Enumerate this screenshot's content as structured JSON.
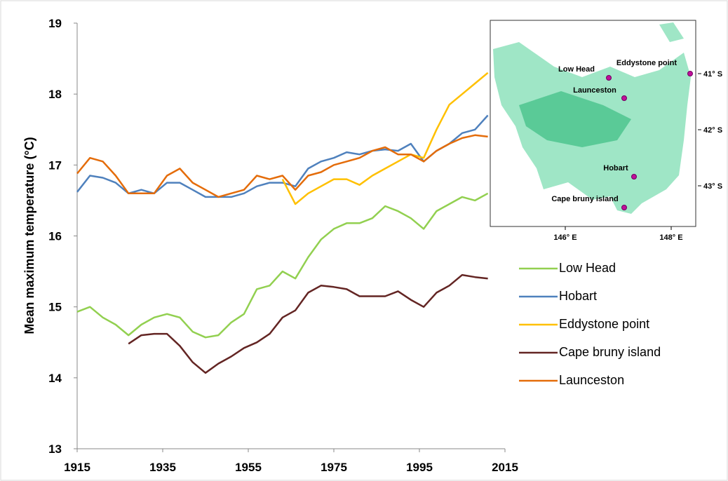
{
  "chart_data": {
    "type": "line",
    "ylabel": "Mean maximum  temperature (°C)",
    "xlim": [
      1915,
      2015
    ],
    "xticks": [
      1915,
      1935,
      1955,
      1975,
      1995,
      2015
    ],
    "ylim": [
      13,
      19
    ],
    "yticks": [
      13,
      14,
      15,
      16,
      17,
      18,
      19
    ],
    "grid": false,
    "legend": "right",
    "x": [
      1915,
      1918,
      1921,
      1924,
      1927,
      1930,
      1933,
      1936,
      1939,
      1942,
      1945,
      1948,
      1951,
      1954,
      1957,
      1960,
      1963,
      1966,
      1969,
      1972,
      1975,
      1978,
      1981,
      1984,
      1987,
      1990,
      1993,
      1996,
      1999,
      2002,
      2005,
      2008,
      2011
    ],
    "series": [
      {
        "name": "Low Head",
        "color": "#92d050",
        "values": [
          14.93,
          15.0,
          14.85,
          14.75,
          14.6,
          14.75,
          14.85,
          14.9,
          14.85,
          14.65,
          14.57,
          14.6,
          14.78,
          14.9,
          15.25,
          15.3,
          15.5,
          15.4,
          15.7,
          15.95,
          16.1,
          16.18,
          16.18,
          16.25,
          16.42,
          16.35,
          16.25,
          16.1,
          16.35,
          16.45,
          16.55,
          16.5,
          16.6
        ]
      },
      {
        "name": "Hobart",
        "color": "#4f81bd",
        "values": [
          16.62,
          16.85,
          16.82,
          16.75,
          16.6,
          16.65,
          16.6,
          16.75,
          16.75,
          16.65,
          16.55,
          16.55,
          16.55,
          16.6,
          16.7,
          16.75,
          16.75,
          16.7,
          16.95,
          17.05,
          17.1,
          17.18,
          17.15,
          17.2,
          17.22,
          17.2,
          17.3,
          17.05,
          17.2,
          17.3,
          17.45,
          17.5,
          17.7
        ]
      },
      {
        "name": "Eddystone point",
        "color": "#ffc000",
        "values": [
          null,
          null,
          null,
          null,
          null,
          null,
          null,
          null,
          null,
          null,
          null,
          null,
          null,
          null,
          null,
          null,
          16.8,
          16.45,
          16.6,
          16.7,
          16.8,
          16.8,
          16.72,
          16.85,
          16.95,
          17.05,
          17.15,
          17.1,
          17.5,
          17.85,
          18.0,
          18.15,
          18.3
        ]
      },
      {
        "name": "Cape bruny island",
        "color": "#632523",
        "values": [
          null,
          null,
          null,
          null,
          14.48,
          14.6,
          14.62,
          14.62,
          14.45,
          14.22,
          14.07,
          14.2,
          14.3,
          14.42,
          14.5,
          14.62,
          14.85,
          14.95,
          15.2,
          15.3,
          15.28,
          15.25,
          15.15,
          15.15,
          15.15,
          15.22,
          15.1,
          15.0,
          15.2,
          15.3,
          15.45,
          15.42,
          15.4
        ]
      },
      {
        "name": "Launceston",
        "color": "#e46c0a",
        "values": [
          16.88,
          17.1,
          17.05,
          16.85,
          16.6,
          16.6,
          16.6,
          16.85,
          16.95,
          16.75,
          16.65,
          16.55,
          16.6,
          16.65,
          16.85,
          16.8,
          16.85,
          16.65,
          16.85,
          16.9,
          17.0,
          17.05,
          17.1,
          17.2,
          17.25,
          17.15,
          17.15,
          17.05,
          17.2,
          17.3,
          17.38,
          17.42,
          17.4
        ]
      }
    ]
  },
  "map": {
    "stations": [
      "Low Head",
      "Eddystone point",
      "Launceston",
      "Hobart",
      "Cape bruny island"
    ],
    "lat_labels": [
      "41° S",
      "42° S",
      "43° S"
    ],
    "lon_labels": [
      "146° E",
      "148° E"
    ]
  }
}
